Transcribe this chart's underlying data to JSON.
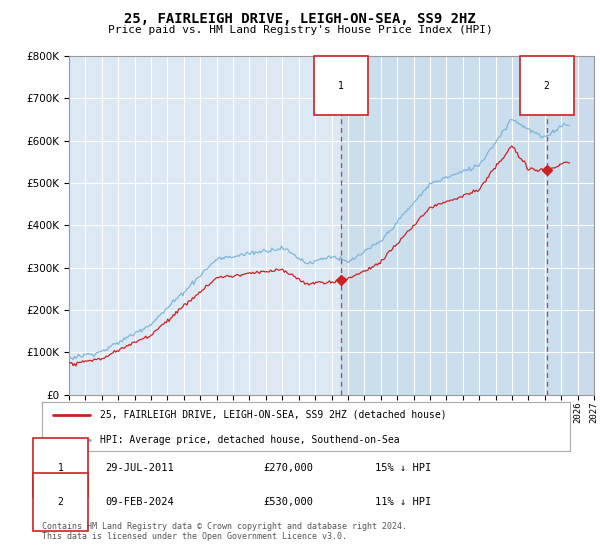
{
  "title": "25, FAIRLEIGH DRIVE, LEIGH-ON-SEA, SS9 2HZ",
  "subtitle": "Price paid vs. HM Land Registry's House Price Index (HPI)",
  "legend_line1": "25, FAIRLEIGH DRIVE, LEIGH-ON-SEA, SS9 2HZ (detached house)",
  "legend_line2": "HPI: Average price, detached house, Southend-on-Sea",
  "annotation1_date": "29-JUL-2011",
  "annotation1_price": "£270,000",
  "annotation1_hpi": "15% ↓ HPI",
  "annotation2_date": "09-FEB-2024",
  "annotation2_price": "£530,000",
  "annotation2_hpi": "11% ↓ HPI",
  "footnote": "Contains HM Land Registry data © Crown copyright and database right 2024.\nThis data is licensed under the Open Government Licence v3.0.",
  "hpi_color": "#7ab4d8",
  "price_color": "#cc2222",
  "marker1_x": 2011.58,
  "marker1_y": 270000,
  "marker2_x": 2024.12,
  "marker2_y": 530000,
  "ylim": [
    0,
    800000
  ],
  "xlim_start": 1995,
  "xlim_end": 2027,
  "shade_start": 2011.58,
  "future_start": 2025.5,
  "background_color": "#ffffff",
  "plot_bg_color": "#dce8f4",
  "grid_color": "#ffffff"
}
